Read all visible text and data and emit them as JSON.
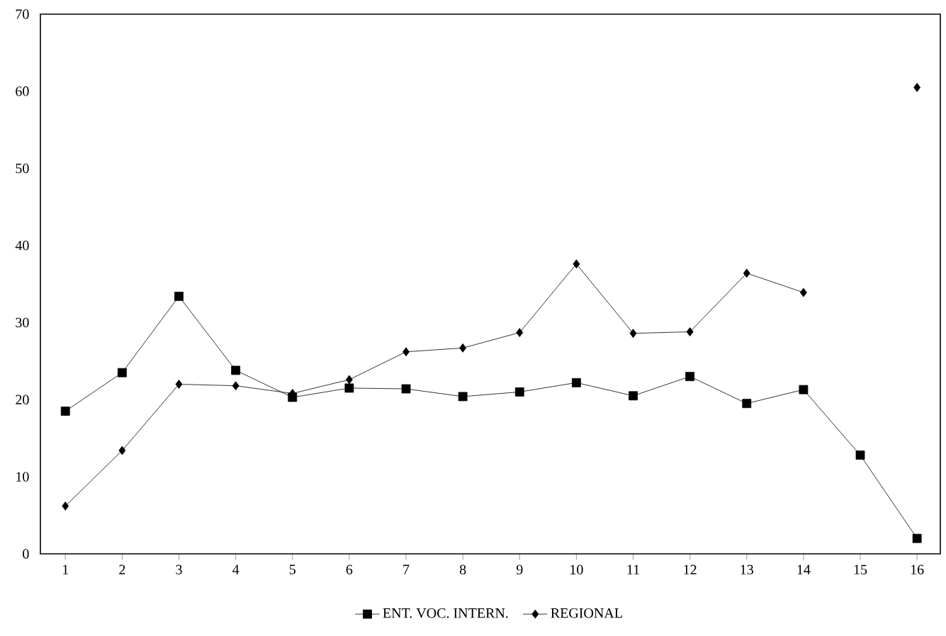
{
  "chart_data": {
    "type": "line",
    "categories": [
      "1",
      "2",
      "3",
      "4",
      "5",
      "6",
      "7",
      "8",
      "9",
      "10",
      "11",
      "12",
      "13",
      "14",
      "15",
      "16"
    ],
    "series": [
      {
        "name": "ENT. VOC. INTERN.",
        "color": "#000000",
        "marker": "square",
        "values": [
          18.5,
          23.5,
          33.4,
          23.8,
          20.3,
          21.5,
          21.4,
          20.4,
          21.0,
          22.2,
          20.5,
          23.0,
          19.5,
          21.3,
          12.8,
          2.0
        ]
      },
      {
        "name": "REGIONAL",
        "color": "#000000",
        "marker": "diamond",
        "values": [
          6.2,
          13.4,
          22.0,
          21.8,
          20.8,
          22.6,
          26.2,
          26.7,
          28.7,
          37.6,
          28.6,
          28.8,
          36.4,
          33.9,
          null,
          60.5
        ]
      }
    ],
    "ylim": [
      0,
      70
    ],
    "yticks": [
      0,
      10,
      20,
      30,
      40,
      50,
      60,
      70
    ],
    "grid": false,
    "legend": "bottom",
    "line_style": "solid"
  }
}
